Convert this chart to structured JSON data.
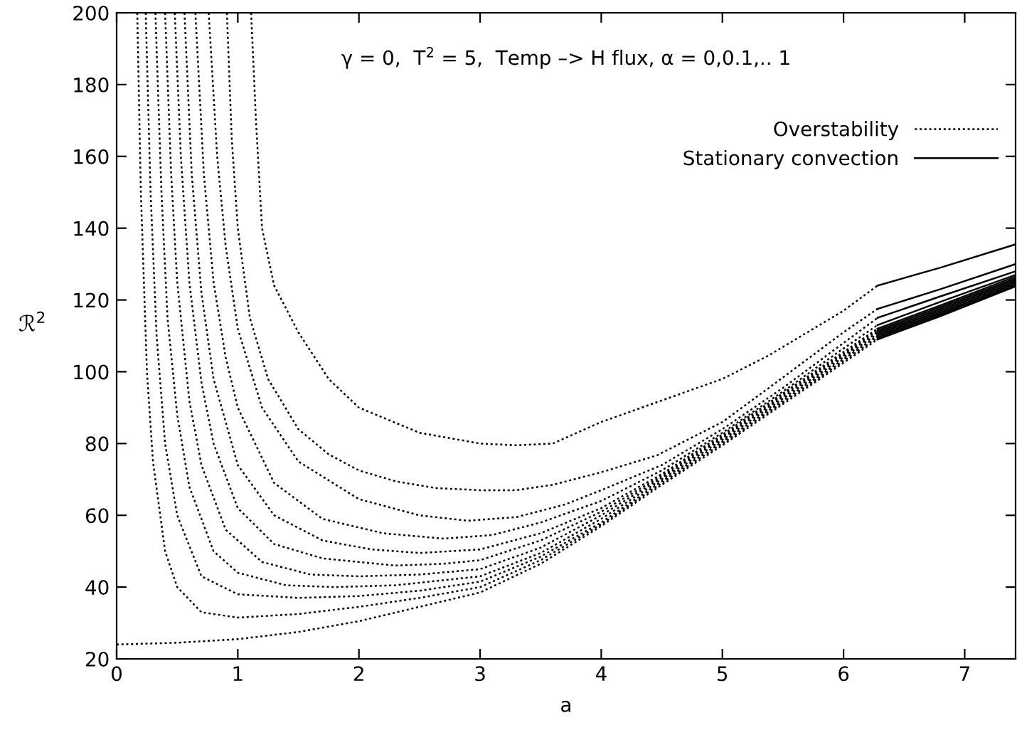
{
  "chart_data": {
    "type": "line",
    "xlabel": "a",
    "ylabel": "ℛ$^{2}$",
    "annotations": [
      {
        "text": "γ = 0,  T$^{2}$ = 5,  Temp –> H flux, α = 0,0.1,.. 1"
      }
    ],
    "xlim": [
      0,
      7.42
    ],
    "ylim": [
      20,
      200
    ],
    "xticks": [
      0,
      1,
      2,
      3,
      4,
      5,
      6,
      7
    ],
    "yticks": [
      20,
      40,
      60,
      80,
      100,
      120,
      140,
      160,
      180,
      200
    ],
    "grid": false,
    "legend": "top right",
    "marker": "none",
    "series": [
      {
        "name": "Overstability",
        "color": "#000000",
        "line_style": "dotted",
        "x": [
          1.11,
          1.15,
          1.2,
          1.3,
          1.5,
          1.75,
          2,
          2.5,
          3,
          3.3,
          3.6,
          4,
          4.5,
          5,
          5.38,
          6,
          6.28
        ],
        "values": [
          200,
          170,
          140,
          124,
          111,
          98,
          90,
          83,
          80,
          79.5,
          80,
          86,
          92,
          98,
          104.5,
          117,
          124
        ]
      },
      {
        "color": "#000000",
        "line_style": "dotted",
        "x": [
          0.91,
          0.95,
          1.0,
          1.1,
          1.25,
          1.5,
          1.75,
          2,
          2.3,
          2.63,
          3,
          3.3,
          3.6,
          4,
          4.46,
          5,
          5.38,
          6,
          6.28
        ],
        "values": [
          200,
          165,
          140,
          115,
          98,
          84,
          77,
          72.5,
          69.5,
          67.6,
          67,
          67,
          68.5,
          72,
          76.7,
          86,
          95.4,
          111,
          117.5
        ]
      },
      {
        "color": "#000000",
        "line_style": "dotted",
        "x": [
          0.76,
          0.83,
          0.9,
          1,
          1.2,
          1.5,
          2,
          2.5,
          2.9,
          3.3,
          3.7,
          4,
          4.5,
          5,
          5.5,
          6,
          6.28
        ],
        "values": [
          200,
          160,
          135,
          112,
          90,
          75,
          64.5,
          60,
          58.5,
          59.5,
          63,
          67,
          74,
          84,
          95.5,
          108,
          115
        ]
      },
      {
        "color": "#000000",
        "line_style": "dotted",
        "x": [
          0.65,
          0.72,
          0.8,
          0.9,
          1,
          1.3,
          1.7,
          2.2,
          2.7,
          3.1,
          3.5,
          4,
          4.5,
          5,
          5.5,
          6,
          6.28
        ],
        "values": [
          200,
          155,
          125,
          104,
          90,
          69,
          59,
          55,
          53.5,
          54.5,
          58,
          64,
          72.5,
          83,
          94.5,
          106.5,
          113
        ]
      },
      {
        "color": "#000000",
        "line_style": "dotted",
        "x": [
          0.56,
          0.62,
          0.7,
          0.8,
          1,
          1.3,
          1.7,
          2.1,
          2.5,
          3,
          3.5,
          4,
          4.5,
          5,
          5.5,
          6,
          6.28
        ],
        "values": [
          200,
          155,
          122,
          98,
          74,
          60,
          53,
          50.5,
          49.5,
          50.5,
          55,
          62,
          71.5,
          82.5,
          94,
          105.5,
          112
        ]
      },
      {
        "color": "#000000",
        "line_style": "dotted",
        "x": [
          0.48,
          0.53,
          0.6,
          0.7,
          0.8,
          1,
          1.3,
          1.7,
          2.3,
          2.7,
          3,
          3.5,
          4,
          4.5,
          5,
          5.5,
          6,
          6.28
        ],
        "values": [
          200,
          160,
          125,
          97,
          80,
          62,
          52,
          48,
          46,
          46.5,
          47.5,
          53,
          61,
          71,
          82,
          93.5,
          105,
          111.5
        ]
      },
      {
        "color": "#000000",
        "line_style": "dotted",
        "x": [
          0.4,
          0.45,
          0.5,
          0.6,
          0.7,
          0.9,
          1.2,
          1.6,
          2,
          2.5,
          3,
          3.5,
          4,
          4.5,
          5,
          5.5,
          6,
          6.28
        ],
        "values": [
          200,
          155,
          125,
          92,
          74,
          56,
          47,
          43.5,
          43,
          43.5,
          45,
          51,
          60,
          70.5,
          81.5,
          93,
          104.5,
          111
        ]
      },
      {
        "color": "#000000",
        "line_style": "dotted",
        "x": [
          0.32,
          0.37,
          0.42,
          0.5,
          0.6,
          0.8,
          1,
          1.4,
          1.8,
          2.3,
          3,
          3.5,
          4,
          4.5,
          5,
          5.5,
          6,
          6.28
        ],
        "values": [
          200,
          150,
          115,
          88,
          68,
          50,
          44,
          40.5,
          40,
          40.5,
          43,
          49.5,
          59,
          70,
          81,
          92.5,
          104,
          110.5
        ]
      },
      {
        "color": "#000000",
        "line_style": "dotted",
        "x": [
          0.24,
          0.28,
          0.33,
          0.4,
          0.5,
          0.7,
          1,
          1.5,
          2,
          2.5,
          3,
          3.5,
          4,
          4.5,
          5,
          5.5,
          6,
          6.28
        ],
        "values": [
          200,
          150,
          110,
          80,
          60,
          43,
          38,
          37,
          37.5,
          39,
          41.5,
          48.5,
          58,
          69.5,
          80.5,
          92,
          103.5,
          110
        ]
      },
      {
        "color": "#000000",
        "line_style": "dotted",
        "x": [
          0.17,
          0.2,
          0.25,
          0.3,
          0.4,
          0.5,
          0.7,
          1,
          1.5,
          2,
          2.5,
          3,
          3.5,
          4,
          4.5,
          5,
          5.5,
          6,
          6.28
        ],
        "values": [
          200,
          150,
          100,
          75,
          50,
          40,
          33,
          31.5,
          32.5,
          34.5,
          37,
          40,
          47.5,
          57.5,
          69,
          80,
          91.5,
          103,
          109.5
        ]
      },
      {
        "color": "#000000",
        "line_style": "dotted",
        "x": [
          0,
          0.5,
          1,
          1.5,
          2,
          2.5,
          3,
          3.5,
          4,
          4.5,
          5,
          5.5,
          6,
          6.28
        ],
        "values": [
          24,
          24.5,
          25.5,
          27.5,
          30.5,
          34.5,
          38.5,
          46.5,
          57,
          68.5,
          79.5,
          91,
          102.5,
          109
        ]
      },
      {
        "name": "Stationary convection",
        "color": "#000000",
        "line_style": "solid",
        "x": [
          6.28,
          6.8,
          7.42
        ],
        "values": [
          124,
          129,
          135.5
        ]
      },
      {
        "color": "#000000",
        "line_style": "solid",
        "x": [
          6.28,
          6.8,
          7.42
        ],
        "values": [
          117.5,
          123,
          130
        ]
      },
      {
        "color": "#000000",
        "line_style": "solid",
        "x": [
          6.28,
          6.8,
          7.42
        ],
        "values": [
          115,
          121,
          128
        ]
      },
      {
        "color": "#000000",
        "line_style": "solid",
        "x": [
          6.28,
          6.8,
          7.42
        ],
        "values": [
          113,
          119.5,
          127
        ]
      },
      {
        "color": "#000000",
        "line_style": "solid",
        "x": [
          6.28,
          6.8,
          7.42
        ],
        "values": [
          112,
          118.5,
          126.5
        ]
      },
      {
        "color": "#000000",
        "line_style": "solid",
        "x": [
          6.28,
          6.8,
          7.42
        ],
        "values": [
          111.5,
          118,
          126
        ]
      },
      {
        "color": "#000000",
        "line_style": "solid",
        "x": [
          6.28,
          6.8,
          7.42
        ],
        "values": [
          111,
          117.5,
          125.5
        ]
      },
      {
        "color": "#000000",
        "line_style": "solid",
        "x": [
          6.28,
          6.8,
          7.42
        ],
        "values": [
          110.5,
          117,
          125
        ]
      },
      {
        "color": "#000000",
        "line_style": "solid",
        "x": [
          6.28,
          6.8,
          7.42
        ],
        "values": [
          110,
          116.5,
          124.5
        ]
      },
      {
        "color": "#000000",
        "line_style": "solid",
        "x": [
          6.28,
          6.8,
          7.42
        ],
        "values": [
          109.5,
          116,
          124
        ]
      },
      {
        "color": "#000000",
        "line_style": "solid",
        "x": [
          6.28,
          6.8,
          7.42
        ],
        "values": [
          109,
          115.5,
          123.8
        ]
      }
    ]
  }
}
